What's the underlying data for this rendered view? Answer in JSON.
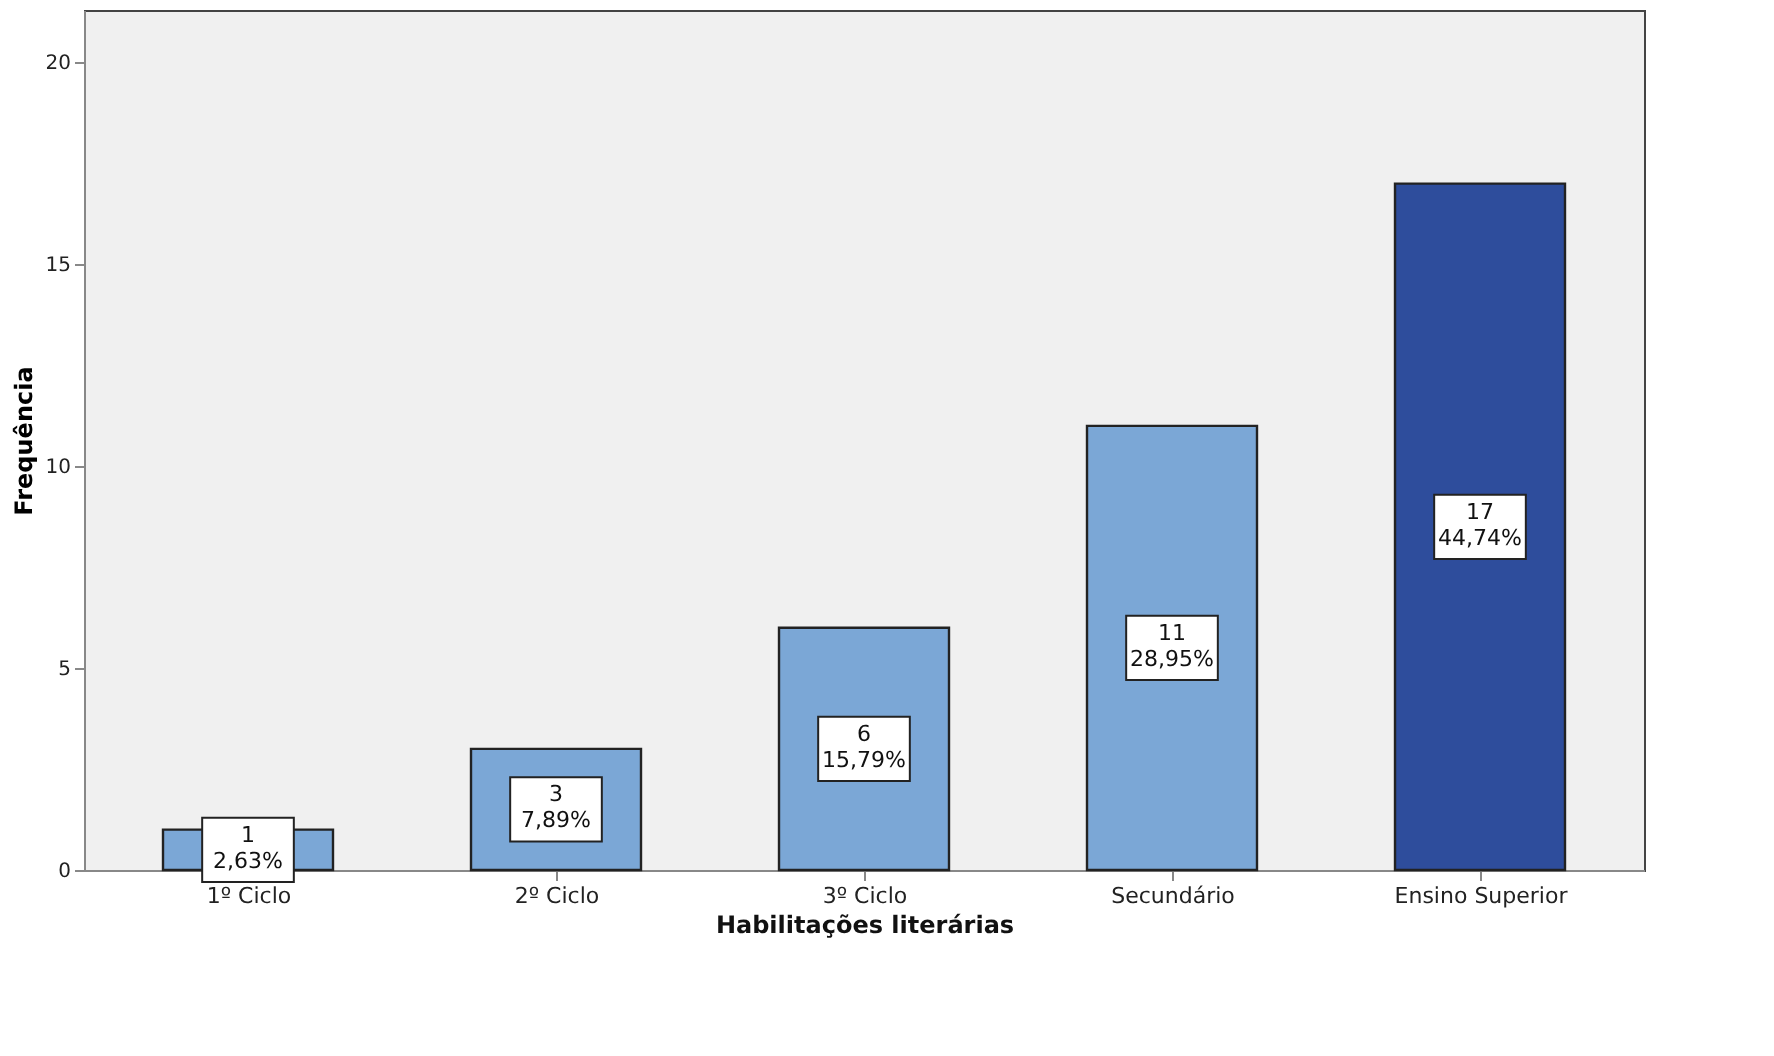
{
  "chart_data": {
    "type": "bar",
    "xlabel": "Habilitações literárias",
    "ylabel": "Frequência",
    "categories": [
      "1º Ciclo",
      "2º Ciclo",
      "3º Ciclo",
      "Secundário",
      "Ensino Superior"
    ],
    "values": [
      1,
      3,
      6,
      11,
      17
    ],
    "colors": [
      "#7ba7d6",
      "#7ba7d6",
      "#7ba7d6",
      "#7ba7d6",
      "#2e4d9c"
    ],
    "value_labels": [
      "1\n2,63%",
      "3\n7,89%",
      "6\n15,79%",
      "11\n28,95%",
      "17\n44,74%"
    ],
    "ylim": [
      0,
      21.3
    ],
    "yticks": [
      0,
      5,
      10,
      15,
      20
    ],
    "grid": false
  }
}
